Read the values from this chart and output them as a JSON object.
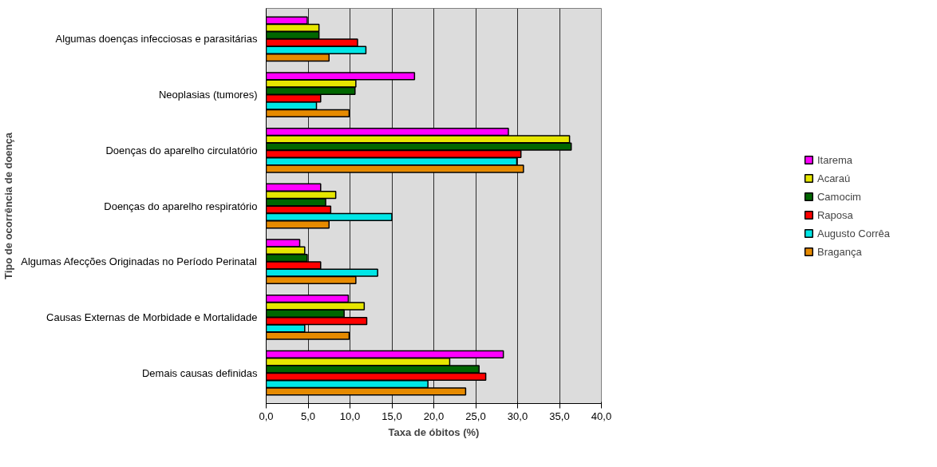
{
  "chart_data": {
    "type": "bar",
    "orientation": "horizontal",
    "xlabel": "Taxa de óbitos (%)",
    "ylabel": "Tipo de ocorrência de doença",
    "categories": [
      "Algumas doenças infecciosas e parasitárias",
      "Neoplasias (tumores)",
      "Doenças do aparelho circulatório",
      "Doenças do aparelho respiratório",
      "Algumas Afecções Originadas no Período Perinatal",
      "Causas Externas de Morbidade e Mortalidade",
      "Demais causas definidas"
    ],
    "series": [
      {
        "name": "Itarema",
        "color": "#ff00ff",
        "values": [
          4.9,
          17.7,
          28.9,
          6.5,
          4.0,
          9.8,
          28.3
        ]
      },
      {
        "name": "Acaraú",
        "color": "#e6e600",
        "values": [
          6.3,
          10.7,
          36.2,
          8.3,
          4.6,
          11.7,
          21.9
        ]
      },
      {
        "name": "Camocim",
        "color": "#006600",
        "values": [
          6.3,
          10.6,
          36.4,
          7.1,
          4.9,
          9.3,
          25.4
        ]
      },
      {
        "name": "Raposa",
        "color": "#ff0000",
        "values": [
          10.9,
          6.5,
          30.4,
          7.7,
          6.5,
          12.0,
          26.2
        ]
      },
      {
        "name": "Augusto Corrêa",
        "color": "#00e6e6",
        "values": [
          11.9,
          6.0,
          29.9,
          15.0,
          13.3,
          4.6,
          19.3
        ]
      },
      {
        "name": "Bragança",
        "color": "#e68a00",
        "values": [
          7.5,
          9.9,
          30.7,
          7.5,
          10.7,
          9.9,
          23.8
        ]
      }
    ],
    "xlim": [
      0,
      40
    ],
    "xticks": [
      {
        "value": 0,
        "label": "0,0"
      },
      {
        "value": 5,
        "label": "5,0"
      },
      {
        "value": 10,
        "label": "10,0"
      },
      {
        "value": 15,
        "label": "15,0"
      },
      {
        "value": 20,
        "label": "20,0"
      },
      {
        "value": 25,
        "label": "25,0"
      },
      {
        "value": 30,
        "label": "30,0"
      },
      {
        "value": 35,
        "label": "35,0"
      },
      {
        "value": 40,
        "label": "40,0"
      }
    ],
    "grid": "x",
    "legend": "right"
  }
}
